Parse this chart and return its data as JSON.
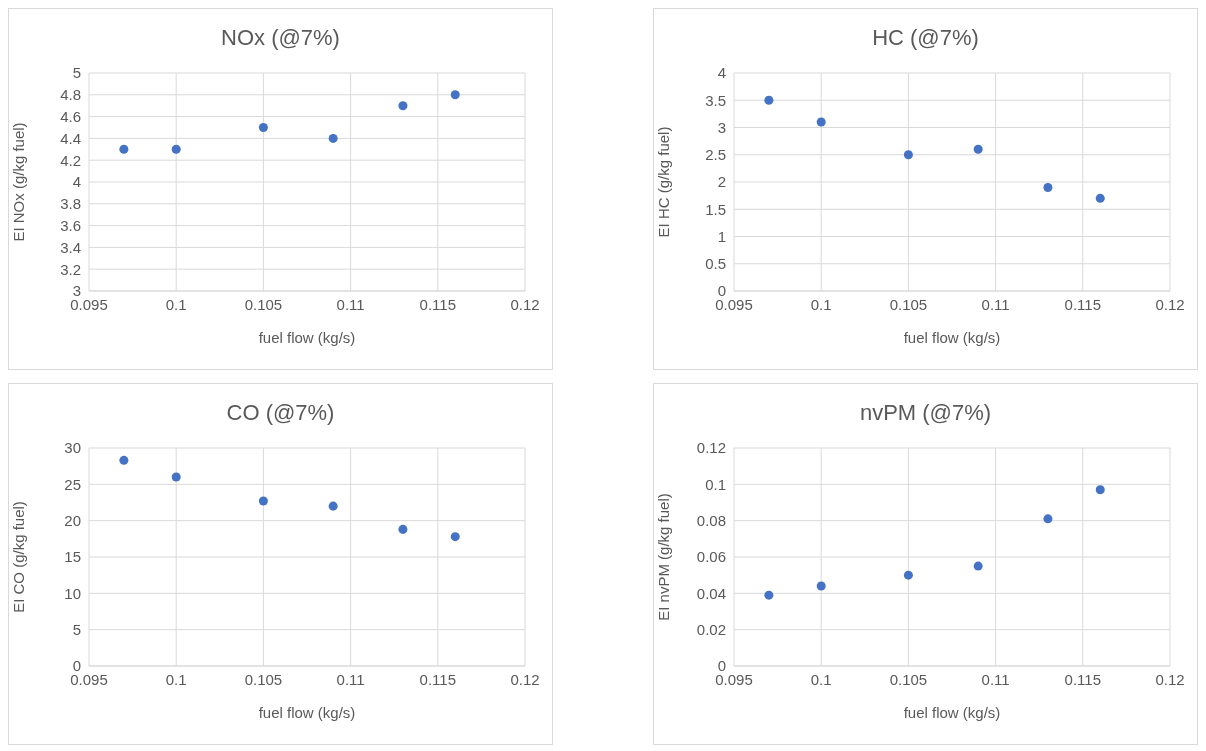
{
  "chart_data": [
    {
      "type": "scatter",
      "title": "NOx (@7%)",
      "xlabel": "fuel flow (kg/s)",
      "ylabel": "EI NOx (g/kg fuel)",
      "x": [
        0.097,
        0.1,
        0.105,
        0.109,
        0.113,
        0.116
      ],
      "values": [
        4.3,
        4.3,
        4.5,
        4.4,
        4.7,
        4.8
      ],
      "color": "#4472c4",
      "xlim": [
        0.095,
        0.12
      ],
      "xticks": [
        0.095,
        0.1,
        0.105,
        0.11,
        0.115,
        0.12
      ],
      "ylim": [
        3,
        5
      ],
      "yticks": [
        3,
        3.2,
        3.4,
        3.6,
        3.8,
        4,
        4.2,
        4.4,
        4.6,
        4.8,
        5
      ],
      "grid": true,
      "marker": "circle",
      "legend": false
    },
    {
      "type": "scatter",
      "title": "HC (@7%)",
      "xlabel": "fuel flow (kg/s)",
      "ylabel": "EI HC (g/kg fuel)",
      "x": [
        0.097,
        0.1,
        0.105,
        0.109,
        0.113,
        0.116
      ],
      "values": [
        3.5,
        3.1,
        2.5,
        2.6,
        1.9,
        1.7
      ],
      "color": "#4472c4",
      "xlim": [
        0.095,
        0.12
      ],
      "xticks": [
        0.095,
        0.1,
        0.105,
        0.11,
        0.115,
        0.12
      ],
      "ylim": [
        0,
        4
      ],
      "yticks": [
        0,
        0.5,
        1,
        1.5,
        2,
        2.5,
        3,
        3.5,
        4
      ],
      "grid": true,
      "marker": "circle",
      "legend": false
    },
    {
      "type": "scatter",
      "title": "CO (@7%)",
      "xlabel": "fuel flow (kg/s)",
      "ylabel": "EI CO (g/kg fuel)",
      "x": [
        0.097,
        0.1,
        0.105,
        0.109,
        0.113,
        0.116
      ],
      "values": [
        28.3,
        26,
        22.7,
        22,
        18.8,
        17.8
      ],
      "color": "#4472c4",
      "xlim": [
        0.095,
        0.12
      ],
      "xticks": [
        0.095,
        0.1,
        0.105,
        0.11,
        0.115,
        0.12
      ],
      "ylim": [
        0,
        30
      ],
      "yticks": [
        0,
        5,
        10,
        15,
        20,
        25,
        30
      ],
      "grid": true,
      "marker": "circle",
      "legend": false
    },
    {
      "type": "scatter",
      "title": "nvPM (@7%)",
      "xlabel": "fuel flow (kg/s)",
      "ylabel": "EI nvPM (g/kg fuel)",
      "x": [
        0.097,
        0.1,
        0.105,
        0.109,
        0.113,
        0.116
      ],
      "values": [
        0.039,
        0.044,
        0.05,
        0.055,
        0.081,
        0.097
      ],
      "color": "#4472c4",
      "xlim": [
        0.095,
        0.12
      ],
      "xticks": [
        0.095,
        0.1,
        0.105,
        0.11,
        0.115,
        0.12
      ],
      "ylim": [
        0,
        0.12
      ],
      "yticks": [
        0,
        0.02,
        0.04,
        0.06,
        0.08,
        0.1,
        0.12
      ],
      "grid": true,
      "marker": "circle",
      "legend": false
    }
  ]
}
